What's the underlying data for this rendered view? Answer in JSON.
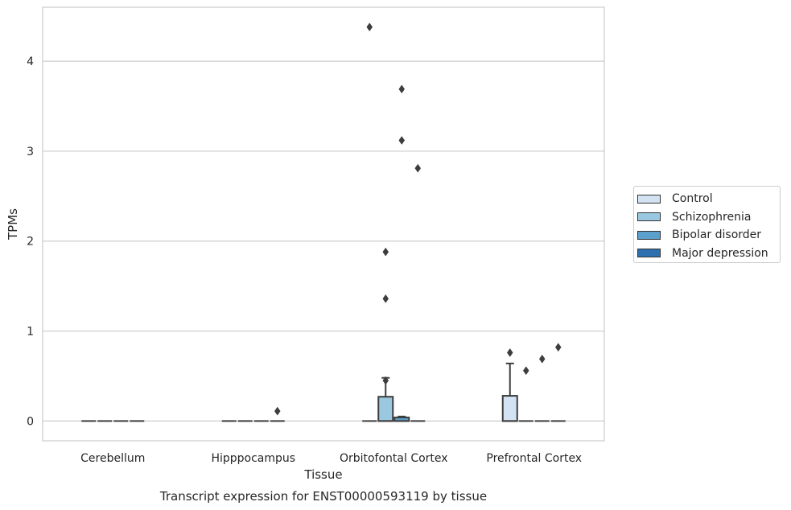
{
  "chart_data": {
    "type": "box",
    "xlabel": "Tissue",
    "ylabel": "TPMs",
    "caption": "Transcript expression for ENST00000593119 by tissue",
    "ylim": [
      -0.22,
      4.6
    ],
    "yticks": [
      0,
      1,
      2,
      3,
      4
    ],
    "grid": "horizontal",
    "legend_position": "right-outside",
    "categories": [
      "Cerebellum",
      "Hipppocampus",
      "Orbitofontal Cortex",
      "Prefrontal Cortex"
    ],
    "series": [
      {
        "name": "Control",
        "color": "#d3e3f3",
        "boxes": [
          {
            "q1": 0,
            "median": 0,
            "q3": 0,
            "whislo": 0,
            "whishi": 0,
            "fliers": []
          },
          {
            "q1": 0,
            "median": 0,
            "q3": 0,
            "whislo": 0,
            "whishi": 0,
            "fliers": []
          },
          {
            "q1": 0,
            "median": 0,
            "q3": 0,
            "whislo": 0,
            "whishi": 0,
            "fliers": [
              4.38
            ]
          },
          {
            "q1": 0,
            "median": 0,
            "q3": 0.28,
            "whislo": 0,
            "whishi": 0.64,
            "fliers": [
              0.76
            ]
          }
        ]
      },
      {
        "name": "Schizophrenia",
        "color": "#9ac8e0",
        "boxes": [
          {
            "q1": 0,
            "median": 0,
            "q3": 0,
            "whislo": 0,
            "whishi": 0,
            "fliers": []
          },
          {
            "q1": 0,
            "median": 0,
            "q3": 0,
            "whislo": 0,
            "whishi": 0,
            "fliers": []
          },
          {
            "q1": 0,
            "median": 0,
            "q3": 0.27,
            "whislo": 0,
            "whishi": 0.48,
            "fliers": [
              1.36,
              1.88,
              0.45
            ]
          },
          {
            "q1": 0,
            "median": 0,
            "q3": 0,
            "whislo": 0,
            "whishi": 0,
            "fliers": [
              0.56
            ]
          }
        ]
      },
      {
        "name": "Bipolar disorder",
        "color": "#5b9fcd",
        "boxes": [
          {
            "q1": 0,
            "median": 0,
            "q3": 0,
            "whislo": 0,
            "whishi": 0,
            "fliers": []
          },
          {
            "q1": 0,
            "median": 0,
            "q3": 0,
            "whislo": 0,
            "whishi": 0,
            "fliers": []
          },
          {
            "q1": 0,
            "median": 0,
            "q3": 0.04,
            "whislo": 0,
            "whishi": 0.05,
            "fliers": [
              3.69,
              3.12
            ]
          },
          {
            "q1": 0,
            "median": 0,
            "q3": 0,
            "whislo": 0,
            "whishi": 0,
            "fliers": [
              0.69
            ]
          }
        ]
      },
      {
        "name": "Major depression",
        "color": "#2c70b0",
        "boxes": [
          {
            "q1": 0,
            "median": 0,
            "q3": 0,
            "whislo": 0,
            "whishi": 0,
            "fliers": []
          },
          {
            "q1": 0,
            "median": 0,
            "q3": 0,
            "whislo": 0,
            "whishi": 0,
            "fliers": [
              0.11
            ]
          },
          {
            "q1": 0,
            "median": 0,
            "q3": 0,
            "whislo": 0,
            "whishi": 0,
            "fliers": [
              2.81
            ]
          },
          {
            "q1": 0,
            "median": 0,
            "q3": 0,
            "whislo": 0,
            "whishi": 0,
            "fliers": [
              0.82
            ]
          }
        ]
      }
    ]
  }
}
